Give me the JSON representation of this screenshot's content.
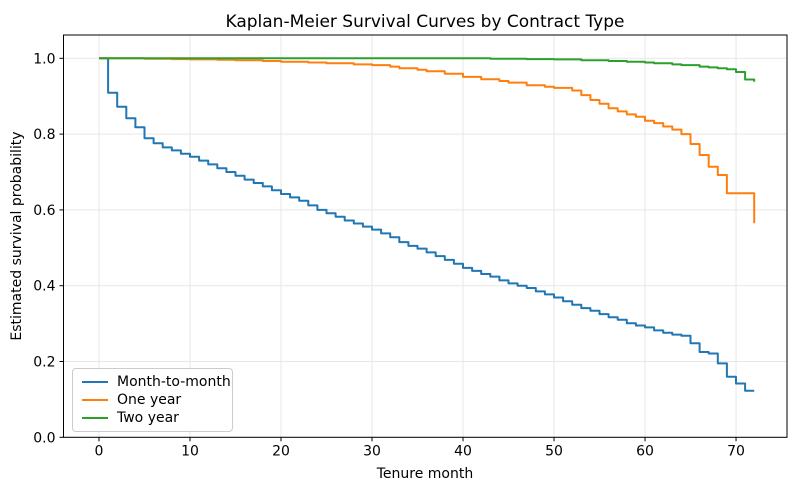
{
  "chart_data": {
    "type": "line",
    "subtype": "kaplan-meier-step",
    "title": "Kaplan-Meier Survival Curves by Contract Type",
    "xlabel": "Tenure month",
    "ylabel": "Estimated survival probability",
    "xlim": [
      -3.9,
      75.6
    ],
    "ylim": [
      0,
      1.0615
    ],
    "xticks": [
      0,
      10,
      20,
      30,
      40,
      50,
      60,
      70
    ],
    "xtick_labels": [
      "0",
      "10",
      "20",
      "30",
      "40",
      "50",
      "60",
      "70"
    ],
    "yticks": [
      0.0,
      0.2,
      0.4,
      0.6,
      0.8,
      1.0
    ],
    "ytick_labels": [
      "0.0",
      "0.2",
      "0.4",
      "0.6",
      "0.8",
      "1.0"
    ],
    "grid": true,
    "grid_color": "#e7e7e7",
    "spine_color": "#000000",
    "legend_position": "lower left",
    "series": [
      {
        "name": "Month-to-month",
        "color": "#1f77b4",
        "points": [
          [
            0,
            1.0
          ],
          [
            1,
            0.909
          ],
          [
            2,
            0.872
          ],
          [
            3,
            0.842
          ],
          [
            4,
            0.818
          ],
          [
            5,
            0.789
          ],
          [
            6,
            0.776
          ],
          [
            7,
            0.765
          ],
          [
            8,
            0.757
          ],
          [
            9,
            0.748
          ],
          [
            10,
            0.74
          ],
          [
            11,
            0.73
          ],
          [
            12,
            0.72
          ],
          [
            13,
            0.71
          ],
          [
            14,
            0.7
          ],
          [
            15,
            0.69
          ],
          [
            16,
            0.68
          ],
          [
            17,
            0.671
          ],
          [
            18,
            0.662
          ],
          [
            19,
            0.652
          ],
          [
            20,
            0.642
          ],
          [
            21,
            0.633
          ],
          [
            22,
            0.624
          ],
          [
            23,
            0.612
          ],
          [
            24,
            0.6
          ],
          [
            25,
            0.591
          ],
          [
            26,
            0.582
          ],
          [
            27,
            0.572
          ],
          [
            28,
            0.564
          ],
          [
            29,
            0.556
          ],
          [
            30,
            0.548
          ],
          [
            31,
            0.538
          ],
          [
            32,
            0.528
          ],
          [
            33,
            0.515
          ],
          [
            34,
            0.505
          ],
          [
            35,
            0.498
          ],
          [
            36,
            0.488
          ],
          [
            37,
            0.478
          ],
          [
            38,
            0.468
          ],
          [
            39,
            0.458
          ],
          [
            40,
            0.447
          ],
          [
            41,
            0.439
          ],
          [
            42,
            0.431
          ],
          [
            43,
            0.424
          ],
          [
            44,
            0.414
          ],
          [
            45,
            0.406
          ],
          [
            46,
            0.4
          ],
          [
            47,
            0.394
          ],
          [
            48,
            0.385
          ],
          [
            49,
            0.377
          ],
          [
            50,
            0.369
          ],
          [
            51,
            0.359
          ],
          [
            52,
            0.35
          ],
          [
            53,
            0.341
          ],
          [
            54,
            0.334
          ],
          [
            55,
            0.325
          ],
          [
            56,
            0.317
          ],
          [
            57,
            0.31
          ],
          [
            58,
            0.301
          ],
          [
            59,
            0.295
          ],
          [
            60,
            0.29
          ],
          [
            61,
            0.282
          ],
          [
            62,
            0.276
          ],
          [
            63,
            0.271
          ],
          [
            64,
            0.268
          ],
          [
            65,
            0.248
          ],
          [
            66,
            0.225
          ],
          [
            67,
            0.221
          ],
          [
            68,
            0.195
          ],
          [
            69,
            0.16
          ],
          [
            70,
            0.142
          ],
          [
            71,
            0.123
          ],
          [
            72,
            0.123
          ]
        ]
      },
      {
        "name": "One year",
        "color": "#ff7f0e",
        "points": [
          [
            0,
            1.0
          ],
          [
            5,
            0.999
          ],
          [
            8,
            0.998
          ],
          [
            10,
            0.997
          ],
          [
            13,
            0.996
          ],
          [
            15,
            0.995
          ],
          [
            18,
            0.993
          ],
          [
            20,
            0.991
          ],
          [
            23,
            0.989
          ],
          [
            25,
            0.987
          ],
          [
            28,
            0.984
          ],
          [
            30,
            0.982
          ],
          [
            32,
            0.978
          ],
          [
            33,
            0.974
          ],
          [
            35,
            0.97
          ],
          [
            36,
            0.966
          ],
          [
            38,
            0.959
          ],
          [
            40,
            0.951
          ],
          [
            42,
            0.945
          ],
          [
            44,
            0.94
          ],
          [
            45,
            0.936
          ],
          [
            47,
            0.929
          ],
          [
            49,
            0.925
          ],
          [
            50,
            0.922
          ],
          [
            52,
            0.915
          ],
          [
            53,
            0.903
          ],
          [
            54,
            0.89
          ],
          [
            55,
            0.88
          ],
          [
            56,
            0.868
          ],
          [
            57,
            0.86
          ],
          [
            58,
            0.852
          ],
          [
            59,
            0.846
          ],
          [
            60,
            0.835
          ],
          [
            61,
            0.829
          ],
          [
            62,
            0.82
          ],
          [
            63,
            0.812
          ],
          [
            64,
            0.8
          ],
          [
            65,
            0.774
          ],
          [
            66,
            0.745
          ],
          [
            67,
            0.714
          ],
          [
            68,
            0.692
          ],
          [
            69,
            0.644
          ],
          [
            72,
            0.565
          ]
        ]
      },
      {
        "name": "Two year",
        "color": "#2ca02c",
        "points": [
          [
            0,
            1.0
          ],
          [
            43,
            0.999
          ],
          [
            47,
            0.998
          ],
          [
            50,
            0.997
          ],
          [
            53,
            0.995
          ],
          [
            56,
            0.993
          ],
          [
            58,
            0.991
          ],
          [
            60,
            0.989
          ],
          [
            61,
            0.987
          ],
          [
            63,
            0.984
          ],
          [
            64,
            0.982
          ],
          [
            66,
            0.978
          ],
          [
            67,
            0.976
          ],
          [
            68,
            0.974
          ],
          [
            69,
            0.971
          ],
          [
            70,
            0.964
          ],
          [
            71,
            0.944
          ],
          [
            72,
            0.938
          ]
        ]
      }
    ]
  }
}
